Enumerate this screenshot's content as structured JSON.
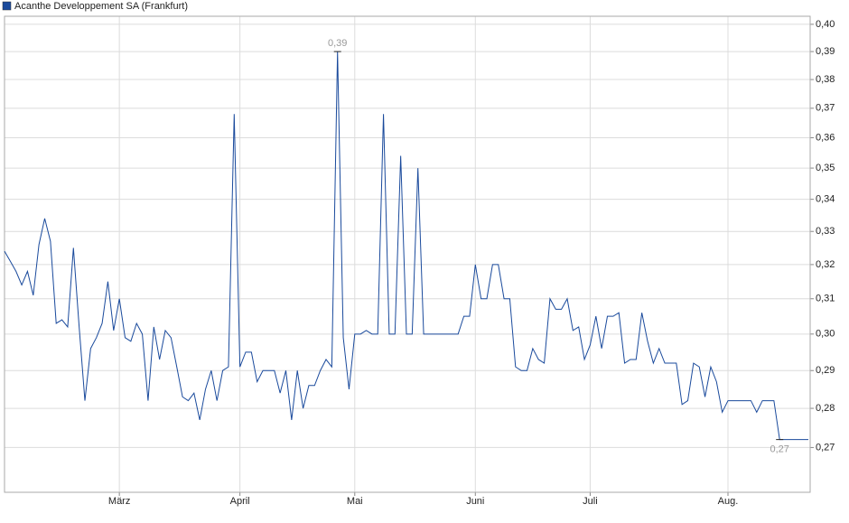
{
  "chart_data": {
    "type": "line",
    "log_y": true,
    "grid": true,
    "legend": "top-left",
    "categories": [
      null,
      null,
      null,
      null,
      null,
      null,
      null,
      null,
      null,
      null,
      null,
      null,
      null,
      null,
      null,
      null,
      null,
      null,
      null,
      null,
      "März",
      null,
      null,
      null,
      null,
      null,
      null,
      null,
      null,
      null,
      null,
      null,
      null,
      null,
      null,
      null,
      null,
      null,
      null,
      null,
      null,
      "April",
      null,
      null,
      null,
      null,
      null,
      null,
      null,
      null,
      null,
      null,
      null,
      null,
      null,
      null,
      null,
      null,
      null,
      null,
      null,
      "Mai",
      null,
      null,
      null,
      null,
      null,
      null,
      null,
      null,
      null,
      null,
      null,
      null,
      null,
      null,
      null,
      null,
      null,
      null,
      null,
      null,
      "Juni",
      null,
      null,
      null,
      null,
      null,
      null,
      null,
      null,
      null,
      null,
      null,
      null,
      null,
      null,
      null,
      null,
      null,
      null,
      null,
      "Juli",
      null,
      null,
      null,
      null,
      null,
      null,
      null,
      null,
      null,
      null,
      null,
      null,
      null,
      null,
      null,
      null,
      null,
      null,
      null,
      null,
      null,
      null,
      null,
      "Aug.",
      null,
      null,
      null,
      null,
      null,
      null,
      null,
      null,
      null,
      null,
      null,
      null,
      null,
      null
    ],
    "series": [
      {
        "name": "Acanthe Developpement SA (Frankfurt)",
        "color": "#1a4a9c",
        "values": [
          0.324,
          0.321,
          0.318,
          0.314,
          0.318,
          0.311,
          0.326,
          0.334,
          0.327,
          0.303,
          0.304,
          0.302,
          0.325,
          0.302,
          0.282,
          0.296,
          0.299,
          0.303,
          0.315,
          0.301,
          0.31,
          0.299,
          0.298,
          0.303,
          0.3,
          0.282,
          0.302,
          0.293,
          0.301,
          0.299,
          0.291,
          0.283,
          0.282,
          0.284,
          0.277,
          0.285,
          0.29,
          0.282,
          0.29,
          0.291,
          0.368,
          0.291,
          0.295,
          0.295,
          0.287,
          0.29,
          0.29,
          0.29,
          0.284,
          0.29,
          0.277,
          0.29,
          0.28,
          0.286,
          0.286,
          0.29,
          0.293,
          0.291,
          0.39,
          0.299,
          0.285,
          0.3,
          0.3,
          0.301,
          0.3,
          0.3,
          0.368,
          0.3,
          0.3,
          0.354,
          0.3,
          0.3,
          0.35,
          0.3,
          0.3,
          0.3,
          0.3,
          0.3,
          0.3,
          0.3,
          0.305,
          0.305,
          0.32,
          0.31,
          0.31,
          0.32,
          0.32,
          0.31,
          0.31,
          0.291,
          0.29,
          0.29,
          0.296,
          0.293,
          0.292,
          0.31,
          0.307,
          0.307,
          0.31,
          0.301,
          0.302,
          0.293,
          0.297,
          0.305,
          0.296,
          0.305,
          0.305,
          0.306,
          0.292,
          0.293,
          0.293,
          0.306,
          0.298,
          0.292,
          0.296,
          0.292,
          0.292,
          0.292,
          0.281,
          0.282,
          0.292,
          0.291,
          0.283,
          0.291,
          0.287,
          0.279,
          0.282,
          0.282,
          0.282,
          0.282,
          0.282,
          0.279,
          0.282,
          0.282,
          0.282,
          0.272,
          0.272,
          0.272,
          0.272,
          0.272,
          0.272
        ],
        "value_labels": [
          null,
          null,
          null,
          null,
          null,
          null,
          null,
          null,
          null,
          null,
          null,
          null,
          null,
          null,
          null,
          null,
          null,
          null,
          null,
          null,
          null,
          null,
          null,
          null,
          null,
          null,
          null,
          null,
          null,
          null,
          null,
          null,
          null,
          null,
          null,
          null,
          null,
          null,
          null,
          null,
          null,
          null,
          null,
          null,
          null,
          null,
          null,
          null,
          null,
          null,
          null,
          null,
          null,
          null,
          null,
          null,
          null,
          null,
          "0,39",
          null,
          null,
          null,
          null,
          null,
          null,
          null,
          null,
          null,
          null,
          null,
          null,
          null,
          null,
          null,
          null,
          null,
          null,
          null,
          null,
          null,
          null,
          null,
          null,
          null,
          null,
          null,
          null,
          null,
          null,
          null,
          null,
          null,
          null,
          null,
          null,
          null,
          null,
          null,
          null,
          null,
          null,
          null,
          null,
          null,
          null,
          null,
          null,
          null,
          null,
          null,
          null,
          null,
          null,
          null,
          null,
          null,
          null,
          null,
          null,
          null,
          null,
          null,
          null,
          null,
          null,
          null,
          null,
          null,
          null,
          null,
          null,
          null,
          null,
          null,
          null,
          "0,27",
          null,
          null,
          null,
          null,
          null
        ]
      }
    ],
    "ylim": [
      0.259,
      0.403
    ],
    "yticks": [
      {
        "value": 0.27,
        "label": "0,27"
      },
      {
        "value": 0.28,
        "label": "0,28"
      },
      {
        "value": 0.29,
        "label": "0,29"
      },
      {
        "value": 0.3,
        "label": "0,30"
      },
      {
        "value": 0.31,
        "label": "0,31"
      },
      {
        "value": 0.32,
        "label": "0,32"
      },
      {
        "value": 0.33,
        "label": "0,33"
      },
      {
        "value": 0.34,
        "label": "0,34"
      },
      {
        "value": 0.35,
        "label": "0,35"
      },
      {
        "value": 0.36,
        "label": "0,36"
      },
      {
        "value": 0.37,
        "label": "0,37"
      },
      {
        "value": 0.38,
        "label": "0,38"
      },
      {
        "value": 0.39,
        "label": "0,39"
      },
      {
        "value": 0.4,
        "label": "0,40"
      }
    ]
  }
}
